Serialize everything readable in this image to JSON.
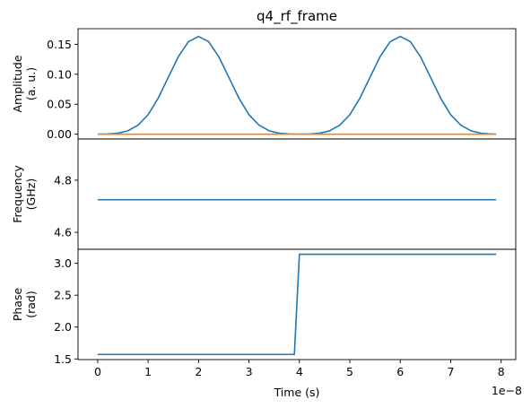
{
  "chart_data": {
    "type": "line",
    "title": "q4_rf_frame",
    "xlabel": "Time (s)",
    "x_offset_label": "1e−8",
    "xlim": [
      -0.39,
      8.29
    ],
    "x_ticks": [
      0,
      1,
      2,
      3,
      4,
      5,
      6,
      7,
      8
    ],
    "x_tick_labels": [
      "0",
      "1",
      "2",
      "3",
      "4",
      "5",
      "6",
      "7",
      "8"
    ],
    "colors": {
      "blue": "#1f77b4",
      "orange": "#ff7f0e"
    },
    "panels": [
      {
        "id": "amplitude",
        "ylabel_lines": [
          "Amplitude",
          "(a. u.)"
        ],
        "ylim": [
          -0.008,
          0.176
        ],
        "y_ticks": [
          0,
          0.05,
          0.1,
          0.15
        ],
        "y_tick_labels": [
          "0.00",
          "0.05",
          "0.10",
          "0.15"
        ],
        "show_x_ticks": false,
        "series": [
          {
            "color": "#1f77b4",
            "x": [
              0,
              0.2,
              0.4,
              0.6,
              0.8,
              1.0,
              1.2,
              1.4,
              1.6,
              1.8,
              2.0,
              2.2,
              2.4,
              2.6,
              2.8,
              3.0,
              3.2,
              3.4,
              3.6,
              3.8,
              4.0,
              4.2,
              4.4,
              4.6,
              4.8,
              5.0,
              5.2,
              5.4,
              5.6,
              5.8,
              6.0,
              6.2,
              6.4,
              6.6,
              6.8,
              7.0,
              7.2,
              7.4,
              7.6,
              7.8,
              7.9
            ],
            "y": [
              0.0,
              0.0003,
              0.0016,
              0.0057,
              0.0151,
              0.0325,
              0.0602,
              0.0949,
              0.1294,
              0.1544,
              0.163,
              0.1544,
              0.1294,
              0.0949,
              0.0602,
              0.0325,
              0.0151,
              0.0057,
              0.0016,
              0.0003,
              0.0,
              0.0003,
              0.0016,
              0.0057,
              0.0151,
              0.0325,
              0.0602,
              0.0949,
              0.1294,
              0.1544,
              0.163,
              0.1544,
              0.1294,
              0.0949,
              0.0602,
              0.0325,
              0.0151,
              0.0057,
              0.0016,
              0.0003,
              0.0
            ]
          },
          {
            "color": "#ff7f0e",
            "x": [
              0,
              7.9
            ],
            "y": [
              0.0,
              0.0
            ]
          }
        ]
      },
      {
        "id": "frequency",
        "ylabel_lines": [
          "Frequency",
          "(GHz)"
        ],
        "ylim": [
          4.535,
          4.958
        ],
        "y_ticks": [
          4.6,
          4.8
        ],
        "y_tick_labels": [
          "4.6",
          "4.8"
        ],
        "show_x_ticks": false,
        "series": [
          {
            "color": "#1f77b4",
            "x": [
              0,
              7.9
            ],
            "y": [
              4.725,
              4.725
            ]
          }
        ]
      },
      {
        "id": "phase",
        "ylabel_lines": [
          "Phase",
          "(rad)"
        ],
        "ylim": [
          1.49,
          3.22
        ],
        "y_ticks": [
          1.5,
          2.0,
          2.5,
          3.0
        ],
        "y_tick_labels": [
          "1.5",
          "2.0",
          "2.5",
          "3.0"
        ],
        "show_x_ticks": true,
        "series": [
          {
            "color": "#1f77b4",
            "x": [
              0,
              3.9,
              4.0,
              7.9
            ],
            "y": [
              1.571,
              1.571,
              3.142,
              3.142
            ]
          }
        ]
      }
    ]
  }
}
